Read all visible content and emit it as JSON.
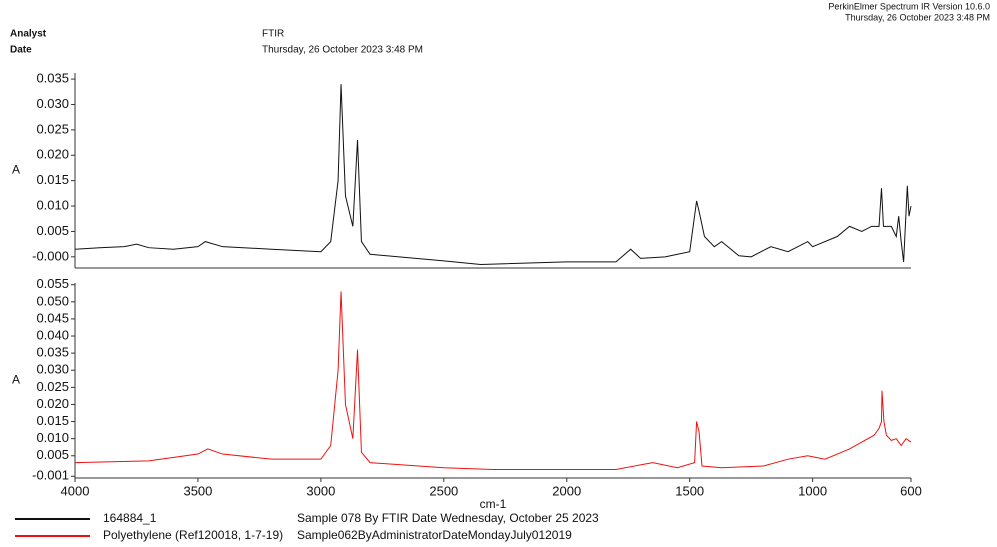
{
  "header": {
    "software": "PerkinElmer Spectrum IR Version 10.6.0",
    "timestamp": "Thursday, 26 October 2023 3:48 PM",
    "analyst_label": "Analyst",
    "analyst": "FTIR",
    "date_label": "Date",
    "date": "Thursday, 26 October 2023 3:48 PM"
  },
  "chart_data": [
    {
      "type": "line",
      "ylabel": "A",
      "xlim": [
        4000,
        600
      ],
      "ylim": [
        -0.0022,
        0.0362
      ],
      "yticks": [
        0.035,
        {
          "value": 0.03,
          "label": "0.030"
        },
        0.025,
        {
          "value": 0.02,
          "label": "0.020"
        },
        0.015,
        {
          "value": 0.01,
          "label": "0.010"
        },
        0.005,
        {
          "value": 0,
          "label": "-0.000"
        }
      ],
      "x": [
        4000,
        3900,
        3800,
        3750,
        3700,
        3600,
        3500,
        3470,
        3400,
        3200,
        3000,
        2960,
        2930,
        2918,
        2900,
        2870,
        2851,
        2835,
        2800,
        2500,
        2350,
        2000,
        1800,
        1740,
        1700,
        1600,
        1500,
        1472,
        1462,
        1440,
        1400,
        1370,
        1300,
        1250,
        1170,
        1100,
        1020,
        1000,
        900,
        850,
        800,
        760,
        730,
        720,
        712,
        680,
        660,
        650,
        640,
        630,
        620,
        615,
        608,
        600
      ],
      "series": [
        {
          "name": "164884_1",
          "description": "Sample 078 By FTIR Date Wednesday, October 25 2023",
          "color": "#111111",
          "values": [
            0.0015,
            0.0018,
            0.002,
            0.0025,
            0.0018,
            0.0015,
            0.002,
            0.003,
            0.002,
            0.0015,
            0.001,
            0.003,
            0.015,
            0.034,
            0.012,
            0.006,
            0.023,
            0.003,
            0.0005,
            -0.0008,
            -0.0015,
            -0.001,
            -0.001,
            0.0015,
            -0.0003,
            0.0,
            0.001,
            0.011,
            0.009,
            0.004,
            0.002,
            0.003,
            0.0002,
            0.0,
            0.002,
            0.001,
            0.003,
            0.002,
            0.004,
            0.006,
            0.005,
            0.006,
            0.006,
            0.0135,
            0.006,
            0.006,
            0.004,
            0.008,
            0.003,
            -0.001,
            0.009,
            0.014,
            0.008,
            0.01
          ]
        }
      ]
    },
    {
      "type": "line",
      "ylabel": "A",
      "xlabel": "cm-1",
      "xlim": [
        4000,
        600
      ],
      "ylim": [
        -0.0015,
        0.0555
      ],
      "xticks": [
        4000,
        3500,
        3000,
        2500,
        2000,
        1500,
        1000,
        600
      ],
      "yticks": [
        0.055,
        {
          "value": 0.05,
          "label": "0.050"
        },
        0.045,
        {
          "value": 0.04,
          "label": "0.040"
        },
        0.035,
        {
          "value": 0.03,
          "label": "0.030"
        },
        0.025,
        {
          "value": 0.02,
          "label": "0.020"
        },
        0.015,
        {
          "value": 0.01,
          "label": "0.010"
        },
        0.005,
        -0.001
      ],
      "x": [
        4000,
        3700,
        3500,
        3460,
        3400,
        3200,
        3000,
        2960,
        2930,
        2918,
        2900,
        2870,
        2851,
        2835,
        2800,
        2500,
        2300,
        2000,
        1800,
        1650,
        1550,
        1480,
        1472,
        1462,
        1450,
        1370,
        1200,
        1100,
        1020,
        950,
        850,
        750,
        730,
        720,
        718,
        710,
        700,
        680,
        660,
        640,
        620,
        600
      ],
      "series": [
        {
          "name": "Polyethylene (Ref120018, 1-7-19)",
          "description": "Sample062ByAdministratorDateMondayJuly012019",
          "color": "#ee1111",
          "values": [
            0.003,
            0.0035,
            0.0055,
            0.007,
            0.0055,
            0.004,
            0.004,
            0.008,
            0.03,
            0.053,
            0.02,
            0.01,
            0.036,
            0.006,
            0.003,
            0.0015,
            0.001,
            0.001,
            0.001,
            0.003,
            0.0015,
            0.003,
            0.015,
            0.012,
            0.002,
            0.0015,
            0.002,
            0.004,
            0.005,
            0.004,
            0.007,
            0.011,
            0.013,
            0.015,
            0.024,
            0.015,
            0.011,
            0.0095,
            0.01,
            0.008,
            0.01,
            0.009
          ]
        }
      ]
    }
  ]
}
